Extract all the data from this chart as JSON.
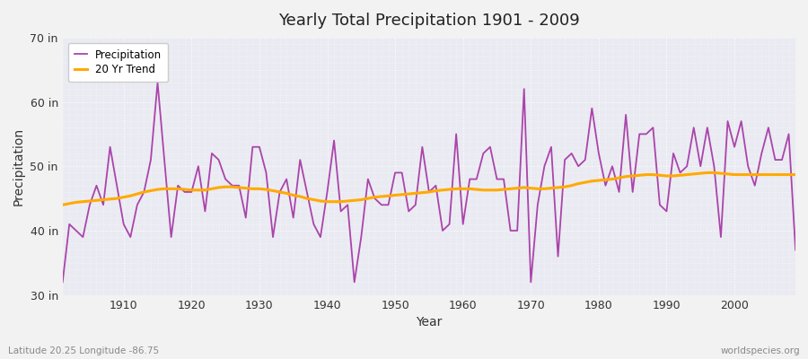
{
  "title": "Yearly Total Precipitation 1901 - 2009",
  "xlabel": "Year",
  "ylabel": "Precipitation",
  "lat_lon_label": "Latitude 20.25 Longitude -86.75",
  "watermark": "worldspecies.org",
  "precip_color": "#aa44aa",
  "trend_color": "#ffaa00",
  "fig_bg_color": "#f0f0f0",
  "plot_bg_color": "#e8e8f0",
  "ylim": [
    30,
    70
  ],
  "yticks": [
    30,
    40,
    50,
    60,
    70
  ],
  "ytick_labels": [
    "30 in",
    "40 in",
    "50 in",
    "60 in",
    "70 in"
  ],
  "xlim": [
    1901,
    2009
  ],
  "xticks": [
    1910,
    1920,
    1930,
    1940,
    1950,
    1960,
    1970,
    1980,
    1990,
    2000
  ],
  "years": [
    1901,
    1902,
    1903,
    1904,
    1905,
    1906,
    1907,
    1908,
    1909,
    1910,
    1911,
    1912,
    1913,
    1914,
    1915,
    1916,
    1917,
    1918,
    1919,
    1920,
    1921,
    1922,
    1923,
    1924,
    1925,
    1926,
    1927,
    1928,
    1929,
    1930,
    1931,
    1932,
    1933,
    1934,
    1935,
    1936,
    1937,
    1938,
    1939,
    1940,
    1941,
    1942,
    1943,
    1944,
    1945,
    1946,
    1947,
    1948,
    1949,
    1950,
    1951,
    1952,
    1953,
    1954,
    1955,
    1956,
    1957,
    1958,
    1959,
    1960,
    1961,
    1962,
    1963,
    1964,
    1965,
    1966,
    1967,
    1968,
    1969,
    1970,
    1971,
    1972,
    1973,
    1974,
    1975,
    1976,
    1977,
    1978,
    1979,
    1980,
    1981,
    1982,
    1983,
    1984,
    1985,
    1986,
    1987,
    1988,
    1989,
    1990,
    1991,
    1992,
    1993,
    1994,
    1995,
    1996,
    1997,
    1998,
    1999,
    2000,
    2001,
    2002,
    2003,
    2004,
    2005,
    2006,
    2007,
    2008,
    2009
  ],
  "precip": [
    32,
    41,
    40,
    39,
    44,
    47,
    44,
    53,
    47,
    41,
    39,
    44,
    46,
    51,
    63,
    51,
    39,
    47,
    46,
    46,
    50,
    43,
    52,
    51,
    48,
    47,
    47,
    42,
    53,
    53,
    49,
    39,
    46,
    48,
    42,
    51,
    46,
    41,
    39,
    46,
    54,
    43,
    44,
    32,
    39,
    48,
    45,
    44,
    44,
    49,
    49,
    43,
    44,
    53,
    46,
    47,
    40,
    41,
    55,
    41,
    48,
    48,
    52,
    53,
    48,
    48,
    40,
    40,
    62,
    32,
    44,
    50,
    53,
    36,
    51,
    52,
    50,
    51,
    59,
    52,
    47,
    50,
    46,
    58,
    46,
    55,
    55,
    56,
    44,
    43,
    52,
    49,
    50,
    56,
    50,
    56,
    50,
    39,
    57,
    53,
    57,
    50,
    47,
    52,
    56,
    51,
    51,
    55,
    37
  ],
  "trend": [
    44.0,
    44.2,
    44.4,
    44.5,
    44.6,
    44.7,
    44.8,
    44.9,
    45.0,
    45.2,
    45.4,
    45.7,
    46.0,
    46.2,
    46.4,
    46.5,
    46.5,
    46.5,
    46.4,
    46.3,
    46.3,
    46.3,
    46.5,
    46.7,
    46.8,
    46.8,
    46.7,
    46.6,
    46.5,
    46.5,
    46.4,
    46.2,
    46.0,
    45.8,
    45.5,
    45.3,
    45.0,
    44.8,
    44.6,
    44.5,
    44.5,
    44.5,
    44.6,
    44.7,
    44.8,
    45.0,
    45.2,
    45.3,
    45.4,
    45.5,
    45.6,
    45.7,
    45.8,
    45.9,
    46.0,
    46.2,
    46.3,
    46.4,
    46.5,
    46.5,
    46.5,
    46.4,
    46.3,
    46.3,
    46.3,
    46.4,
    46.5,
    46.6,
    46.7,
    46.6,
    46.5,
    46.5,
    46.6,
    46.7,
    46.8,
    47.0,
    47.3,
    47.5,
    47.7,
    47.8,
    47.9,
    48.0,
    48.2,
    48.4,
    48.5,
    48.6,
    48.7,
    48.7,
    48.6,
    48.5,
    48.5,
    48.6,
    48.7,
    48.8,
    48.9,
    49.0,
    49.0,
    48.9,
    48.8,
    48.7,
    48.7,
    48.7,
    48.7,
    48.7,
    48.7,
    48.7,
    48.7,
    48.7,
    48.7
  ]
}
